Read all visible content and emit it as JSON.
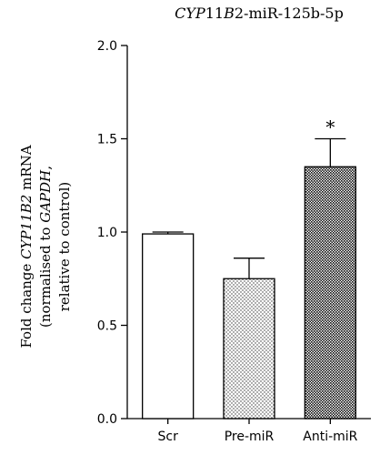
{
  "chart_data": {
    "type": "bar",
    "title": {
      "part1": "CYP",
      "part2": "11",
      "part3": "B",
      "part4": "2-miR-125b-5p"
    },
    "ylabel": {
      "line1_a": "Fold change ",
      "line1_b": "CYP11B2",
      "line1_c": " mRNA",
      "line2_a": "(normalised to ",
      "line2_b": "GAPDH",
      "line2_c": ",",
      "line3": "relative to control)"
    },
    "categories": [
      "Scr",
      "Pre-miR",
      "Anti-miR"
    ],
    "values": [
      0.99,
      0.75,
      1.35
    ],
    "errors": [
      0.01,
      0.11,
      0.15
    ],
    "fills": [
      "none",
      "dots-light",
      "dots-dense"
    ],
    "annotations": [
      {
        "category": "Anti-miR",
        "text": "*"
      }
    ],
    "ylim": [
      0,
      2.0
    ],
    "yticks": [
      "0.0",
      "0.5",
      "1.0",
      "1.5",
      "2.0"
    ],
    "grid": false,
    "legend": "none"
  }
}
